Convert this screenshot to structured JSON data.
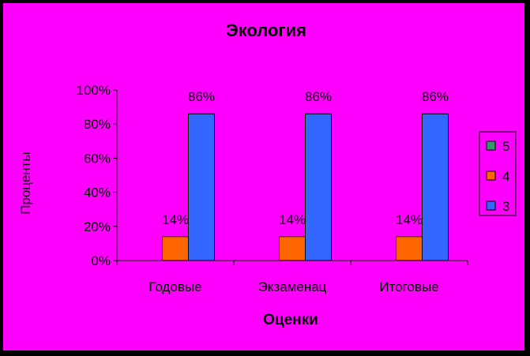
{
  "chart_data": {
    "type": "bar",
    "title": "Экология",
    "xlabel": "Оценки",
    "ylabel": "Проценты",
    "categories": [
      "Годовые",
      "Экзаменац",
      "Итоговые"
    ],
    "yticks": [
      "0%",
      "20%",
      "40%",
      "60%",
      "80%",
      "100%"
    ],
    "ylim": [
      0,
      100
    ],
    "grid": false,
    "legend_position": "right",
    "series": [
      {
        "name": "5",
        "color": "#339966",
        "values": [
          0,
          0,
          0
        ],
        "labels": [
          "",
          "",
          ""
        ]
      },
      {
        "name": "4",
        "color": "#ff6600",
        "values": [
          14,
          14,
          14
        ],
        "labels": [
          "14%",
          "14%",
          "14%"
        ]
      },
      {
        "name": "3",
        "color": "#3366ff",
        "values": [
          86,
          86,
          86
        ],
        "labels": [
          "86%",
          "86%",
          "86%"
        ]
      }
    ]
  }
}
